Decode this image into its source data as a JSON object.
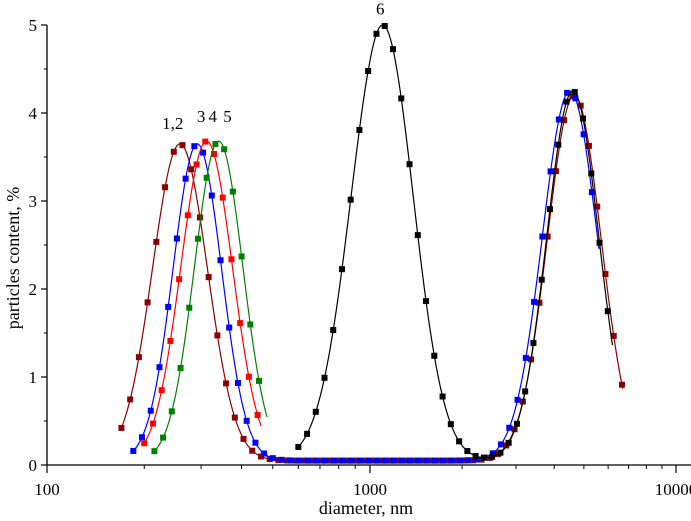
{
  "chart_data": {
    "type": "line",
    "xscale": "log",
    "xlabel": "diameter, nm",
    "ylabel": "particles content, %",
    "xlim": [
      100,
      20000
    ],
    "ylim": [
      0,
      5
    ],
    "x_ticks": [
      {
        "value": 100,
        "label": "100"
      },
      {
        "value": 1000,
        "label": "1000"
      },
      {
        "value": 10000,
        "label": "10000"
      }
    ],
    "y_ticks": [
      {
        "value": 0,
        "label": "0"
      },
      {
        "value": 1,
        "label": "1"
      },
      {
        "value": 2,
        "label": "2"
      },
      {
        "value": 3,
        "label": "3"
      },
      {
        "value": 4,
        "label": "4"
      },
      {
        "value": 5,
        "label": "5"
      }
    ],
    "baseline": 0.05,
    "series": [
      {
        "color": "#8b0000",
        "peaks": [
          {
            "center": 258,
            "sigma": 0.085,
            "height": 3.65
          },
          {
            "center": 4650,
            "sigma": 0.088,
            "height": 4.2
          }
        ],
        "x_range": [
          170,
          6700
        ]
      },
      {
        "color": "#0000ff",
        "peaks": [
          {
            "center": 292,
            "sigma": 0.075,
            "height": 3.65
          },
          {
            "center": 4500,
            "sigma": 0.09,
            "height": 4.25
          }
        ],
        "x_range": [
          185,
          5600
        ]
      },
      {
        "color": "#ff0000",
        "peaks": [
          {
            "center": 312,
            "sigma": 0.08,
            "height": 3.68
          }
        ],
        "x_range": [
          200,
          460
        ]
      },
      {
        "color": "#008000",
        "peaks": [
          {
            "center": 340,
            "sigma": 0.075,
            "height": 3.68
          }
        ],
        "x_range": [
          215,
          480
        ]
      },
      {
        "color": "#000000",
        "peaks": [
          {
            "center": 1100,
            "sigma": 0.1,
            "height": 5.0
          },
          {
            "center": 4600,
            "sigma": 0.085,
            "height": 4.25
          }
        ],
        "x_range": [
          600,
          6200
        ]
      }
    ],
    "annotations": [
      {
        "text": "1,2",
        "x": 245,
        "y": 3.82
      },
      {
        "text": "3",
        "x": 300,
        "y": 3.9
      },
      {
        "text": "4",
        "x": 326,
        "y": 3.9
      },
      {
        "text": "5",
        "x": 362,
        "y": 3.9
      },
      {
        "text": "6",
        "x": 1080,
        "y": 5.12
      }
    ]
  }
}
